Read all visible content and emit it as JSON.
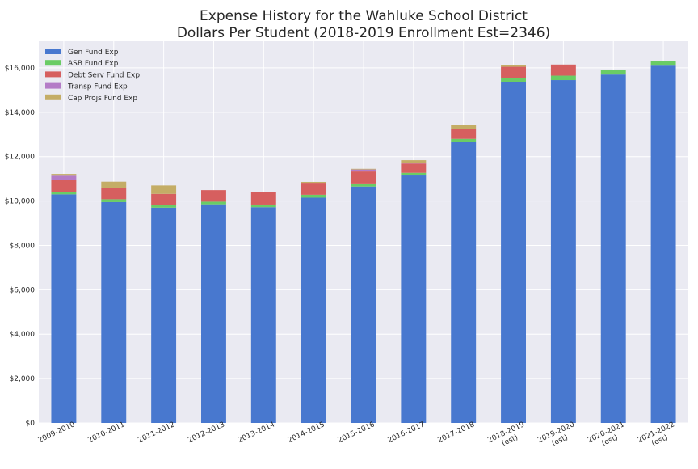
{
  "chart_data": {
    "type": "bar",
    "stacked": true,
    "title": "Expense History for the Wahluke School District",
    "subtitle": "Dollars Per Student (2018-2019 Enrollment Est=2346)",
    "xlabel": "",
    "ylabel": "",
    "ylim": [
      0,
      17200
    ],
    "yticks": [
      0,
      2000,
      4000,
      6000,
      8000,
      10000,
      12000,
      14000,
      16000
    ],
    "ytick_labels": [
      "$0",
      "$2,000",
      "$4,000",
      "$6,000",
      "$8,000",
      "$10,000",
      "$12,000",
      "$14,000",
      "$16,000"
    ],
    "grid": true,
    "legend_position": "top-left",
    "categories": [
      [
        "2009-2010"
      ],
      [
        "2010-2011"
      ],
      [
        "2011-2012"
      ],
      [
        "2012-2013"
      ],
      [
        "2013-2014"
      ],
      [
        "2014-2015"
      ],
      [
        "2015-2016"
      ],
      [
        "2016-2017"
      ],
      [
        "2017-2018"
      ],
      [
        "2018-2019",
        "(est)"
      ],
      [
        "2019-2020",
        "(est)"
      ],
      [
        "2020-2021",
        "(est)"
      ],
      [
        "2021-2022",
        "(est)"
      ]
    ],
    "series": [
      {
        "name": "Gen Fund Exp",
        "color": "#4878cf",
        "values": [
          10300,
          9950,
          9700,
          9850,
          9720,
          10150,
          10650,
          11150,
          12650,
          15350,
          15450,
          15700,
          16100
        ]
      },
      {
        "name": "ASB Fund Exp",
        "color": "#6acc65",
        "values": [
          120,
          130,
          120,
          120,
          120,
          130,
          140,
          120,
          150,
          200,
          200,
          200,
          220
        ]
      },
      {
        "name": "Debt Serv Fund Exp",
        "color": "#d65f5f",
        "values": [
          540,
          520,
          500,
          520,
          550,
          540,
          540,
          420,
          450,
          500,
          500,
          0,
          0
        ]
      },
      {
        "name": "Transp Fund Exp",
        "color": "#b47cc7",
        "values": [
          180,
          0,
          0,
          0,
          30,
          0,
          90,
          30,
          0,
          0,
          0,
          0,
          0
        ]
      },
      {
        "name": "Cap Projs Fund Exp",
        "color": "#c4ad66",
        "values": [
          80,
          270,
          380,
          0,
          0,
          40,
          30,
          120,
          180,
          70,
          0,
          0,
          0
        ]
      }
    ]
  }
}
